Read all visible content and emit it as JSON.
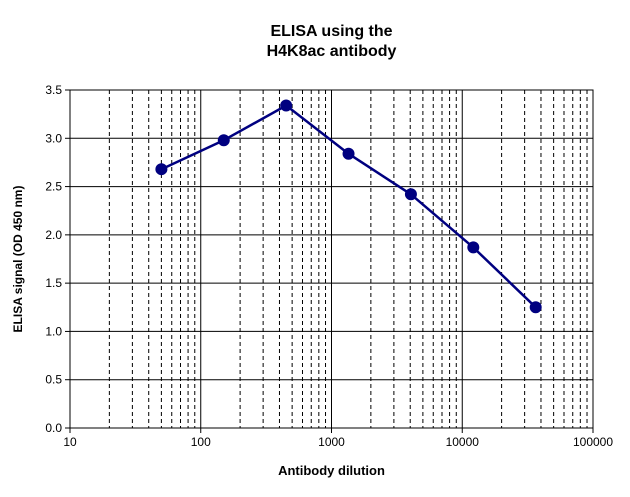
{
  "chart_data": {
    "type": "scatter",
    "title": [
      "ELISA using the",
      "H4K8ac antibody"
    ],
    "xlabel": "Antibody dilution",
    "ylabel": "ELISA signal (OD 450 nm)",
    "x_scale": "log",
    "xlim": [
      10,
      100000
    ],
    "ylim": [
      0,
      3.5
    ],
    "x_ticks": [
      "10",
      "100",
      "1000",
      "10000",
      "100000"
    ],
    "y_ticks": [
      "0.0",
      "0.5",
      "1.0",
      "1.5",
      "2.0",
      "2.5",
      "3.0",
      "3.5"
    ],
    "grid": true,
    "legend": false,
    "series": [
      {
        "x": [
          50,
          150,
          450,
          1350,
          4050,
          12150,
          36450
        ],
        "y": [
          2.68,
          2.98,
          3.34,
          2.84,
          2.42,
          1.87,
          1.25
        ],
        "color": "#000080",
        "markers": true,
        "line": true
      }
    ]
  }
}
